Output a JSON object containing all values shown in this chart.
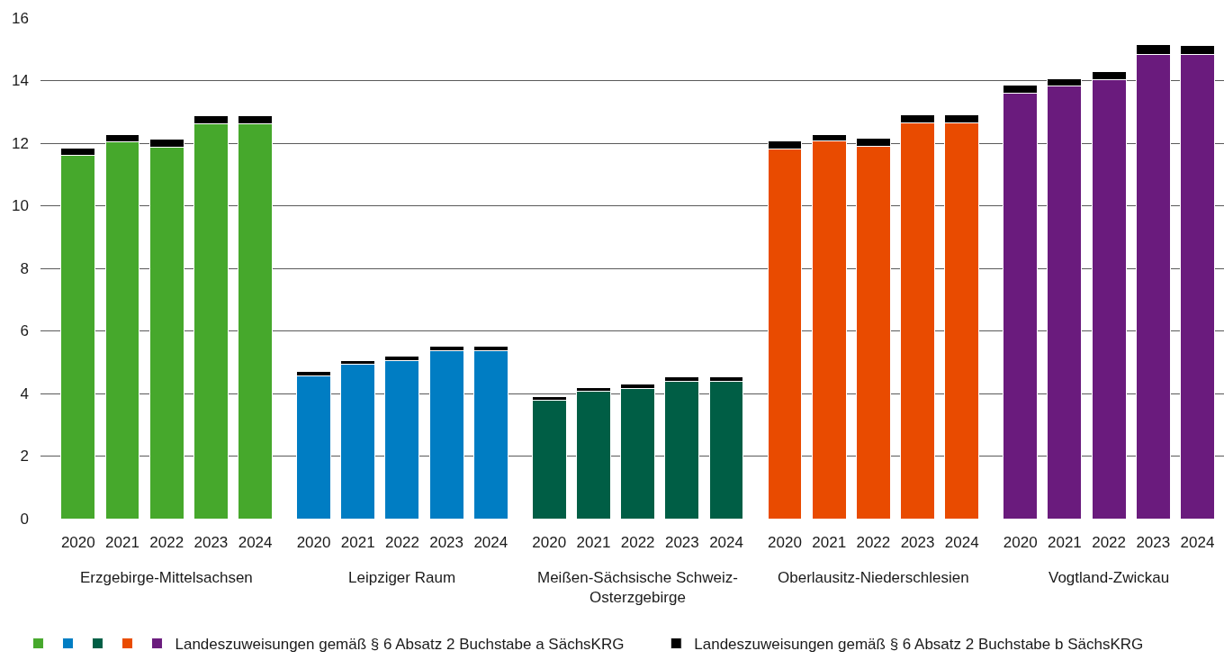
{
  "chart_data": {
    "type": "bar",
    "stacked": true,
    "categories": [
      "2020",
      "2021",
      "2022",
      "2023",
      "2024",
      "2020",
      "2021",
      "2022",
      "2023",
      "2024",
      "2020",
      "2021",
      "2022",
      "2023",
      "2024",
      "2020",
      "2021",
      "2022",
      "2023",
      "2024",
      "2020",
      "2021",
      "2022",
      "2023",
      "2024"
    ],
    "series": [
      {
        "name": "Landeszuweisungen gemäß § 6 Absatz 2 Buchstabe a SächsKRG",
        "colors": [
          "#46a82c",
          "#46a82c",
          "#46a82c",
          "#46a82c",
          "#46a82c",
          "#007dc3",
          "#007dc3",
          "#007dc3",
          "#007dc3",
          "#007dc3",
          "#005e45",
          "#005e45",
          "#005e45",
          "#005e45",
          "#005e45",
          "#e94b00",
          "#e94b00",
          "#e94b00",
          "#e94b00",
          "#e94b00",
          "#6a1b7d",
          "#6a1b7d",
          "#6a1b7d",
          "#6a1b7d",
          "#6a1b7d"
        ],
        "values": [
          11.6,
          12.05,
          11.88,
          12.61,
          12.61,
          4.57,
          4.94,
          5.05,
          5.36,
          5.36,
          3.78,
          4.06,
          4.15,
          4.4,
          4.4,
          11.82,
          12.08,
          11.91,
          12.64,
          12.64,
          13.6,
          13.83,
          14.02,
          14.84,
          14.84
        ]
      },
      {
        "name": "Landeszuweisungen gemäß § 6 Absatz 2 Buchstabe b SächsKRG",
        "color": "#000000",
        "values": [
          0.25,
          0.22,
          0.25,
          0.26,
          0.26,
          0.14,
          0.11,
          0.14,
          0.14,
          0.14,
          0.11,
          0.12,
          0.14,
          0.14,
          0.14,
          0.26,
          0.19,
          0.25,
          0.26,
          0.26,
          0.25,
          0.22,
          0.26,
          0.31,
          0.28
        ]
      }
    ],
    "ylim": [
      0,
      16
    ],
    "yticks": [
      0,
      2,
      4,
      6,
      8,
      10,
      12,
      14,
      16
    ],
    "grid": "y",
    "legend": "bottom",
    "annotations": [
      "Erzgebirge-Mittelsachsen",
      "Leipziger Raum",
      "Meißen-Sächsische Schweiz-Osterzgebirge",
      "Oberlausitz-Niederschlesien",
      "Vogtland-Zwickau"
    ]
  }
}
